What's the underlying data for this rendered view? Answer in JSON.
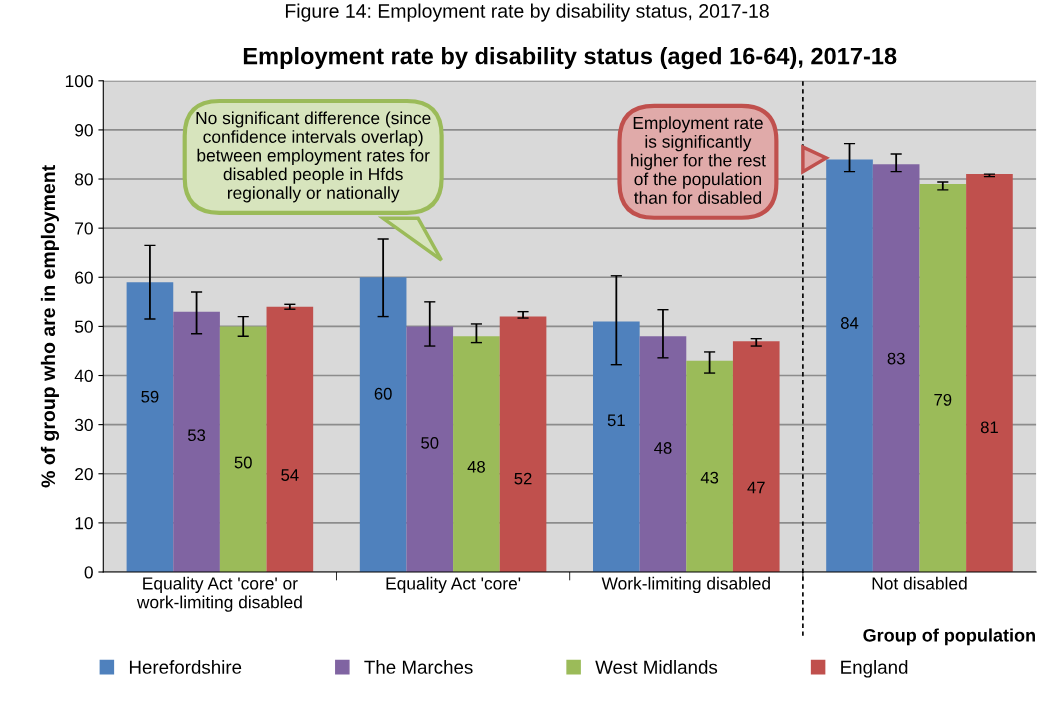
{
  "chart_data": {
    "type": "bar",
    "title": "Employment rate by disability status (aged 16-64), 2017-18",
    "ylabel": "% of group who are in employment",
    "xlabel": "Group of population",
    "categories": [
      "Equality Act 'core' or\nwork-limiting disabled",
      "Equality Act 'core'",
      "Work-limiting disabled",
      "Not disabled"
    ],
    "series": [
      {
        "name": "Herefordshire",
        "color": "#4f81bd",
        "values": [
          59,
          60,
          51,
          84
        ],
        "errors": [
          [
            51.5,
            66.5
          ],
          [
            52,
            67.8
          ],
          [
            42.2,
            60.3
          ],
          [
            81.5,
            87.2
          ]
        ]
      },
      {
        "name": "The Marches",
        "color": "#8064a2",
        "values": [
          53,
          50,
          48,
          83
        ],
        "errors": [
          [
            48.5,
            57
          ],
          [
            46,
            55
          ],
          [
            43.6,
            53.4
          ],
          [
            81.5,
            85.1
          ]
        ]
      },
      {
        "name": "West Midlands",
        "color": "#9bbb59",
        "values": [
          50,
          48,
          43,
          79
        ],
        "errors": [
          [
            48,
            52
          ],
          [
            46.7,
            50.5
          ],
          [
            40.5,
            44.8
          ],
          [
            77.8,
            79.4
          ]
        ]
      },
      {
        "name": "England",
        "color": "#c0504d",
        "values": [
          54,
          52,
          47,
          81
        ],
        "errors": [
          [
            53.5,
            54.5
          ],
          [
            51.7,
            53
          ],
          [
            46,
            47.5
          ],
          [
            80.5,
            81
          ]
        ]
      }
    ],
    "ylim": [
      0,
      100
    ],
    "yticks": [
      0,
      10,
      20,
      30,
      40,
      50,
      60,
      70,
      80,
      90,
      100
    ],
    "grid": "y",
    "legend": "bottom",
    "data_labels": true,
    "annotations": [
      "Figure 14: Employment rate by disability status, 2017-18",
      "No significant difference (since\nconfidence intervals overlap)\nbetween employment rates for\ndisabled people in Hfds\nregionally or nationally",
      "Employment rate\nis significantly\nhigher for the rest\nof the population\nthan for disabled"
    ]
  }
}
